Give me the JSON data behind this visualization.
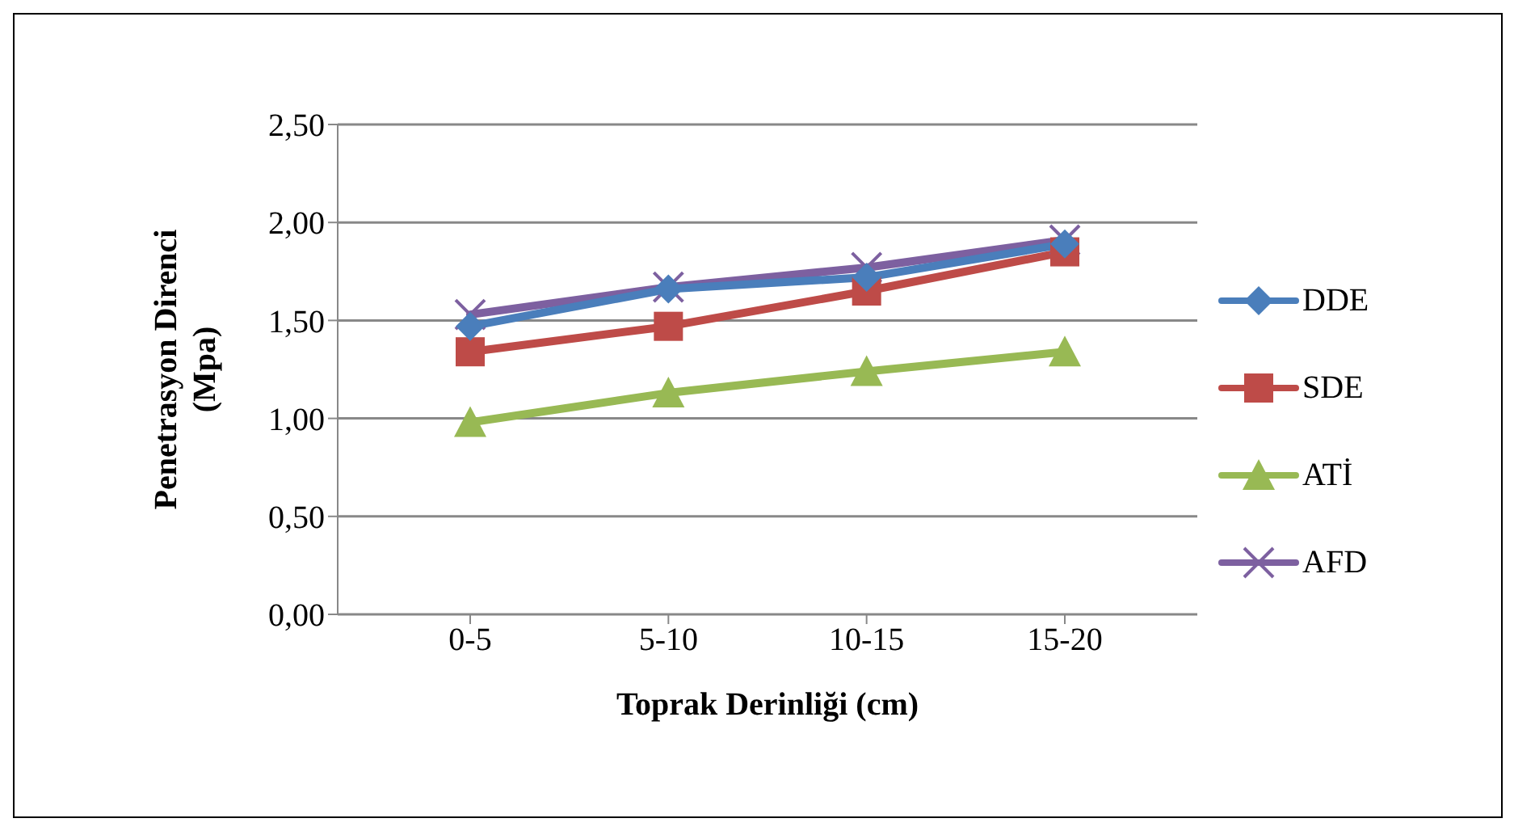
{
  "chart_data": {
    "type": "line",
    "xlabel": "Toprak Derinliği (cm)",
    "ylabel": "Penetrasyon Direnci\n(Mpa)",
    "categories": [
      "0-5",
      "5-10",
      "10-15",
      "15-20"
    ],
    "series": [
      {
        "name": "DDE",
        "color": "#4a7ebb",
        "marker": "diamond",
        "values": [
          1.47,
          1.66,
          1.72,
          1.89
        ]
      },
      {
        "name": "SDE",
        "color": "#be4b48",
        "marker": "square",
        "values": [
          1.34,
          1.47,
          1.65,
          1.85
        ]
      },
      {
        "name": "ATİ",
        "color": "#98b954",
        "marker": "triangle",
        "values": [
          0.98,
          1.13,
          1.24,
          1.34
        ]
      },
      {
        "name": "AFD",
        "color": "#7d60a0",
        "marker": "cross",
        "values": [
          1.53,
          1.67,
          1.77,
          1.91
        ]
      }
    ],
    "ylim": [
      0,
      2.5
    ],
    "yticks": [
      {
        "value": 0,
        "label": "0,00"
      },
      {
        "value": 0.5,
        "label": "0,50"
      },
      {
        "value": 1,
        "label": "1,00"
      },
      {
        "value": 1.5,
        "label": "1,50"
      },
      {
        "value": 2,
        "label": "2,00"
      },
      {
        "value": 2.5,
        "label": "2,50"
      }
    ],
    "grid": "y",
    "legend": "right",
    "line_style": "solid"
  }
}
